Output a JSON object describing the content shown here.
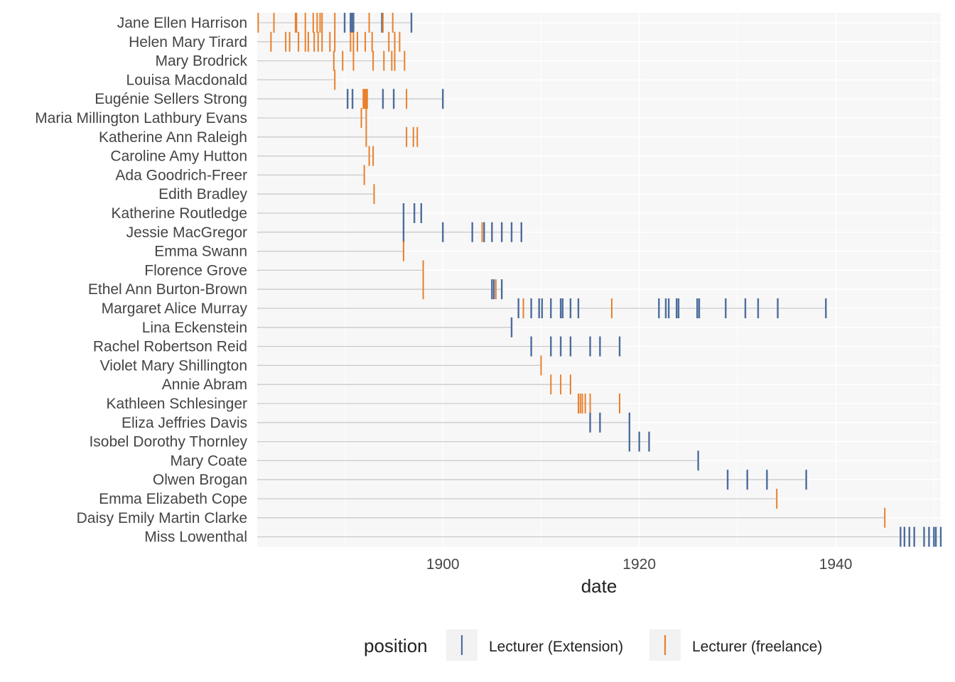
{
  "chart_data": {
    "type": "timeline",
    "xlabel": "date",
    "xlim": [
      1881.1,
      1950.7
    ],
    "x_ticks": [
      1900,
      1920,
      1940
    ],
    "legend": {
      "title": "position",
      "placement": "bottom",
      "entries": [
        {
          "name": "Lecturer (Extension)",
          "color": "#4E6D9E"
        },
        {
          "name": "Lecturer (freelance)",
          "color": "#E8802C"
        }
      ]
    },
    "grid": true,
    "people": [
      {
        "name": "Jane Ellen Harrison",
        "range": [
          1881.2,
          1896.8
        ],
        "ext": [
          1890.0,
          1890.6,
          1890.7,
          1890.8,
          1890.9,
          1893.8,
          1896.8
        ],
        "free": [
          1881.2,
          1882.8,
          1885.0,
          1885.1,
          1886.0,
          1886.8,
          1887.2,
          1887.5,
          1887.7,
          1889.0,
          1892.5,
          1893.9,
          1894.9
        ]
      },
      {
        "name": "Helen Mary Tirard",
        "range": [
          1881.2,
          1895.6
        ],
        "ext": [],
        "free": [
          1882.5,
          1884.0,
          1884.4,
          1885.3,
          1886.0,
          1886.3,
          1886.9,
          1887.3,
          1887.7,
          1888.5,
          1889.0,
          1890.6,
          1890.9,
          1891.3,
          1892.1,
          1892.8,
          1894.5,
          1895.1,
          1895.6
        ]
      },
      {
        "name": "Mary Brodrick",
        "range": [
          1888.9,
          1896.1
        ],
        "ext": [],
        "free": [
          1888.9,
          1889.8,
          1890.9,
          1892.9,
          1894.0,
          1894.8,
          1895.1,
          1896.1
        ]
      },
      {
        "name": "Louisa Macdonald",
        "range": [
          1889.0,
          1889.0
        ],
        "ext": [],
        "free": [
          1889.0
        ]
      },
      {
        "name": "Eugénie Sellers Strong",
        "range": [
          1890.3,
          1900.0
        ],
        "ext": [
          1890.3,
          1890.8,
          1893.9,
          1895.0,
          1900.0
        ],
        "free": [
          1891.9,
          1892.0,
          1892.1,
          1892.2,
          1892.3,
          1896.3
        ]
      },
      {
        "name": "Maria Millington Lathbury Evans",
        "range": [
          1891.7,
          1892.2
        ],
        "ext": [],
        "free": [
          1891.7,
          1892.2
        ]
      },
      {
        "name": "Katherine Ann Raleigh",
        "range": [
          1892.2,
          1897.4
        ],
        "ext": [],
        "free": [
          1892.2,
          1896.3,
          1897.0,
          1897.4
        ]
      },
      {
        "name": "Caroline Amy Hutton",
        "range": [
          1892.5,
          1892.9
        ],
        "ext": [],
        "free": [
          1892.5,
          1892.9
        ]
      },
      {
        "name": "Ada Goodrich-Freer",
        "range": [
          1892.0,
          1892.0
        ],
        "ext": [],
        "free": [
          1892.0
        ]
      },
      {
        "name": "Edith Bradley",
        "range": [
          1893.0,
          1893.0
        ],
        "ext": [],
        "free": [
          1893.0
        ]
      },
      {
        "name": "Katherine Routledge",
        "range": [
          1896.0,
          1897.8
        ],
        "ext": [
          1896.0,
          1897.1,
          1897.8
        ],
        "free": []
      },
      {
        "name": "Jessie MacGregor",
        "range": [
          1896.0,
          1908.0
        ],
        "ext": [
          1896.0,
          1900.0,
          1903.0,
          1904.2,
          1905.0,
          1906.0,
          1907.0,
          1908.0
        ],
        "free": [
          1904.0
        ]
      },
      {
        "name": "Emma Swann",
        "range": [
          1896.0,
          1896.0
        ],
        "ext": [],
        "free": [
          1896.0
        ]
      },
      {
        "name": "Florence Grove",
        "range": [
          1898.0,
          1898.0
        ],
        "ext": [],
        "free": [
          1898.0
        ]
      },
      {
        "name": "Ethel Ann Burton-Brown",
        "range": [
          1898.0,
          1906.0
        ],
        "ext": [
          1905.0,
          1905.2,
          1906.0
        ],
        "free": [
          1898.0,
          1905.4
        ]
      },
      {
        "name": "Margaret Alice Murray",
        "range": [
          1907.7,
          1939.0
        ],
        "ext": [
          1907.7,
          1909.0,
          1909.8,
          1910.1,
          1911.0,
          1912.0,
          1912.2,
          1913.0,
          1913.8,
          1922.0,
          1922.7,
          1923.0,
          1923.8,
          1924.0,
          1925.9,
          1926.1,
          1928.8,
          1930.8,
          1932.1,
          1934.1,
          1939.0
        ],
        "free": [
          1908.2,
          1917.2
        ]
      },
      {
        "name": "Lina Eckenstein",
        "range": [
          1907.0,
          1907.0
        ],
        "ext": [
          1907.0
        ],
        "free": []
      },
      {
        "name": "Rachel Robertson Reid",
        "range": [
          1909.0,
          1918.0
        ],
        "ext": [
          1909.0,
          1911.0,
          1912.0,
          1913.0,
          1915.0,
          1916.0,
          1918.0
        ],
        "free": []
      },
      {
        "name": "Violet Mary Shillington",
        "range": [
          1910.0,
          1910.0
        ],
        "ext": [],
        "free": [
          1910.0
        ]
      },
      {
        "name": "Annie Abram",
        "range": [
          1911.0,
          1913.0
        ],
        "ext": [],
        "free": [
          1911.0,
          1912.0,
          1913.0
        ]
      },
      {
        "name": "Kathleen Schlesinger",
        "range": [
          1913.8,
          1918.0
        ],
        "ext": [],
        "free": [
          1913.8,
          1914.0,
          1914.2,
          1914.5,
          1915.0,
          1918.0
        ]
      },
      {
        "name": "Eliza Jeffries Davis",
        "range": [
          1915.0,
          1919.0
        ],
        "ext": [
          1915.0,
          1916.0,
          1919.0
        ],
        "free": []
      },
      {
        "name": "Isobel Dorothy Thornley",
        "range": [
          1919.0,
          1921.0
        ],
        "ext": [
          1919.0,
          1920.0,
          1921.0
        ],
        "free": []
      },
      {
        "name": "Mary Coate",
        "range": [
          1926.0,
          1926.0
        ],
        "ext": [
          1926.0
        ],
        "free": []
      },
      {
        "name": "Olwen Brogan",
        "range": [
          1929.0,
          1937.0
        ],
        "ext": [
          1929.0,
          1931.0,
          1933.0,
          1937.0
        ],
        "free": []
      },
      {
        "name": "Emma Elizabeth Cope",
        "range": [
          1934.0,
          1934.0
        ],
        "ext": [],
        "free": [
          1934.0
        ]
      },
      {
        "name": "Daisy Emily Martin Clarke",
        "range": [
          1945.0,
          1945.0
        ],
        "ext": [],
        "free": [
          1945.0
        ]
      },
      {
        "name": "Miss Lowenthal",
        "range": [
          1946.6,
          1950.7
        ],
        "ext": [
          1946.6,
          1947.0,
          1947.5,
          1948.0,
          1949.0,
          1949.5,
          1950.0,
          1950.2,
          1950.7
        ],
        "free": []
      }
    ]
  }
}
